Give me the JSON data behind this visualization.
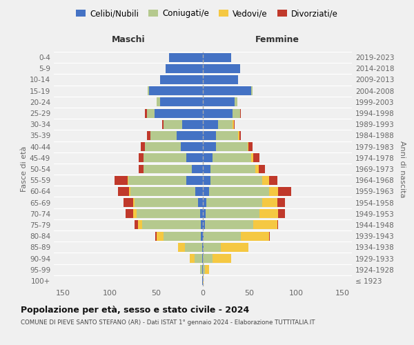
{
  "age_groups": [
    "100+",
    "95-99",
    "90-94",
    "85-89",
    "80-84",
    "75-79",
    "70-74",
    "65-69",
    "60-64",
    "55-59",
    "50-54",
    "45-49",
    "40-44",
    "35-39",
    "30-34",
    "25-29",
    "20-24",
    "15-19",
    "10-14",
    "5-9",
    "0-4"
  ],
  "birth_years": [
    "≤ 1923",
    "1924-1928",
    "1929-1933",
    "1934-1938",
    "1939-1943",
    "1944-1948",
    "1949-1953",
    "1954-1958",
    "1959-1963",
    "1964-1968",
    "1969-1973",
    "1974-1978",
    "1979-1983",
    "1984-1988",
    "1989-1993",
    "1994-1998",
    "1999-2003",
    "2004-2008",
    "2009-2013",
    "2014-2018",
    "2019-2023"
  ],
  "maschi": {
    "celibi": [
      1,
      1,
      1,
      1,
      2,
      2,
      3,
      5,
      8,
      18,
      12,
      18,
      24,
      28,
      22,
      52,
      46,
      58,
      46,
      40,
      36
    ],
    "coniugati": [
      0,
      2,
      8,
      18,
      40,
      63,
      68,
      68,
      70,
      62,
      52,
      46,
      38,
      28,
      20,
      8,
      4,
      1,
      0,
      0,
      0
    ],
    "vedovi": [
      0,
      0,
      5,
      8,
      8,
      5,
      4,
      2,
      1,
      1,
      0,
      0,
      0,
      0,
      0,
      0,
      0,
      0,
      0,
      0,
      0
    ],
    "divorziati": [
      0,
      0,
      0,
      0,
      1,
      3,
      8,
      10,
      12,
      14,
      5,
      5,
      5,
      4,
      2,
      2,
      0,
      0,
      0,
      0,
      0
    ]
  },
  "femmine": {
    "nubili": [
      0,
      0,
      0,
      1,
      1,
      2,
      3,
      4,
      7,
      8,
      8,
      10,
      14,
      14,
      16,
      32,
      34,
      52,
      38,
      40,
      30
    ],
    "coniugate": [
      0,
      2,
      10,
      18,
      40,
      52,
      58,
      60,
      64,
      56,
      48,
      42,
      34,
      24,
      16,
      8,
      3,
      1,
      0,
      0,
      0
    ],
    "vedove": [
      1,
      5,
      20,
      30,
      30,
      26,
      20,
      16,
      10,
      7,
      4,
      2,
      1,
      1,
      1,
      0,
      0,
      0,
      0,
      0,
      0
    ],
    "divorziate": [
      0,
      0,
      0,
      0,
      1,
      1,
      7,
      8,
      14,
      9,
      7,
      7,
      4,
      2,
      1,
      1,
      0,
      0,
      0,
      0,
      0
    ]
  },
  "colors": {
    "celibi": "#4472c4",
    "coniugati": "#b5c98e",
    "vedovi": "#f5c842",
    "divorziati": "#c0392b"
  },
  "xlim": 160,
  "title": "Popolazione per età, sesso e stato civile - 2024",
  "subtitle": "COMUNE DI PIEVE SANTO STEFANO (AR) - Dati ISTAT 1° gennaio 2024 - Elaborazione TUTTITALIA.IT",
  "xlabel_left": "Maschi",
  "xlabel_right": "Femmine",
  "ylabel_left": "Fasce di età",
  "ylabel_right": "Anni di nascita",
  "legend_labels": [
    "Celibi/Nubili",
    "Coniugati/e",
    "Vedovi/e",
    "Divorziati/e"
  ],
  "bg_color": "#f0f0f0",
  "text_color": "#666666",
  "title_color": "#111111",
  "subtitle_color": "#444444"
}
